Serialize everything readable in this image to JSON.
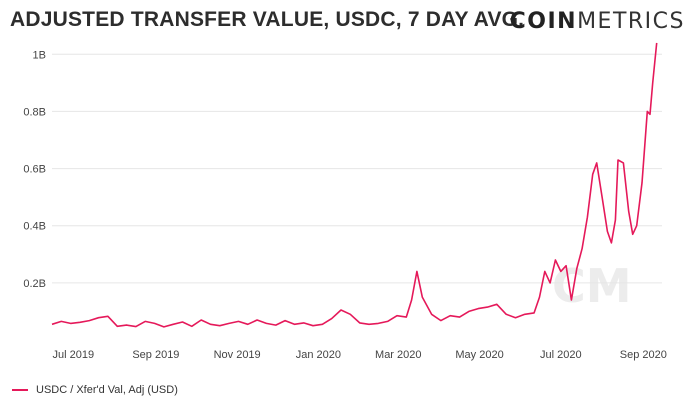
{
  "header": {
    "title": "ADJUSTED TRANSFER VALUE, USDC, 7 DAY AVG.",
    "logo_bold": "COIN",
    "logo_light": "METRICS"
  },
  "colors": {
    "series": "#e5195a",
    "grid": "#e6e6e6",
    "watermark": "#ececec"
  },
  "chart_data": {
    "type": "line",
    "title": "ADJUSTED TRANSFER VALUE, USDC, 7 DAY AVG.",
    "xlabel": "",
    "ylabel": "",
    "y_unit": "USD",
    "ylim": [
      0,
      1050000000
    ],
    "xlim": [
      "2019-06-15",
      "2020-09-15"
    ],
    "grid": true,
    "legend_position": "bottom-left",
    "y_ticks": [
      {
        "value": 200000000,
        "label": "0.2B"
      },
      {
        "value": 400000000,
        "label": "0.4B"
      },
      {
        "value": 600000000,
        "label": "0.6B"
      },
      {
        "value": 800000000,
        "label": "0.8B"
      },
      {
        "value": 1000000000,
        "label": "1B"
      }
    ],
    "x_ticks": [
      {
        "date": "2019-07-01",
        "label": "Jul 2019"
      },
      {
        "date": "2019-09-01",
        "label": "Sep 2019"
      },
      {
        "date": "2019-11-01",
        "label": "Nov 2019"
      },
      {
        "date": "2020-01-01",
        "label": "Jan 2020"
      },
      {
        "date": "2020-03-01",
        "label": "Mar 2020"
      },
      {
        "date": "2020-05-01",
        "label": "May 2020"
      },
      {
        "date": "2020-07-01",
        "label": "Jul 2020"
      },
      {
        "date": "2020-09-01",
        "label": "Sep 2020"
      }
    ],
    "series": [
      {
        "name": "USDC / Xfer'd Val, Adj (USD)",
        "color": "#e5195a",
        "points": [
          [
            "2019-06-15",
            55000000
          ],
          [
            "2019-06-22",
            65000000
          ],
          [
            "2019-06-29",
            58000000
          ],
          [
            "2019-07-06",
            62000000
          ],
          [
            "2019-07-13",
            68000000
          ],
          [
            "2019-07-20",
            78000000
          ],
          [
            "2019-07-27",
            83000000
          ],
          [
            "2019-08-03",
            48000000
          ],
          [
            "2019-08-10",
            52000000
          ],
          [
            "2019-08-17",
            47000000
          ],
          [
            "2019-08-24",
            65000000
          ],
          [
            "2019-08-31",
            58000000
          ],
          [
            "2019-09-07",
            46000000
          ],
          [
            "2019-09-14",
            55000000
          ],
          [
            "2019-09-21",
            63000000
          ],
          [
            "2019-09-28",
            48000000
          ],
          [
            "2019-10-05",
            70000000
          ],
          [
            "2019-10-12",
            55000000
          ],
          [
            "2019-10-19",
            50000000
          ],
          [
            "2019-10-26",
            58000000
          ],
          [
            "2019-11-02",
            65000000
          ],
          [
            "2019-11-09",
            55000000
          ],
          [
            "2019-11-16",
            70000000
          ],
          [
            "2019-11-23",
            58000000
          ],
          [
            "2019-11-30",
            52000000
          ],
          [
            "2019-12-07",
            68000000
          ],
          [
            "2019-12-14",
            55000000
          ],
          [
            "2019-12-21",
            60000000
          ],
          [
            "2019-12-28",
            50000000
          ],
          [
            "2020-01-04",
            55000000
          ],
          [
            "2020-01-11",
            75000000
          ],
          [
            "2020-01-18",
            105000000
          ],
          [
            "2020-01-25",
            90000000
          ],
          [
            "2020-02-01",
            60000000
          ],
          [
            "2020-02-08",
            55000000
          ],
          [
            "2020-02-15",
            58000000
          ],
          [
            "2020-02-22",
            65000000
          ],
          [
            "2020-02-29",
            85000000
          ],
          [
            "2020-03-07",
            80000000
          ],
          [
            "2020-03-11",
            140000000
          ],
          [
            "2020-03-15",
            240000000
          ],
          [
            "2020-03-19",
            150000000
          ],
          [
            "2020-03-26",
            90000000
          ],
          [
            "2020-04-02",
            68000000
          ],
          [
            "2020-04-09",
            85000000
          ],
          [
            "2020-04-16",
            80000000
          ],
          [
            "2020-04-23",
            100000000
          ],
          [
            "2020-04-30",
            110000000
          ],
          [
            "2020-05-07",
            115000000
          ],
          [
            "2020-05-14",
            125000000
          ],
          [
            "2020-05-21",
            90000000
          ],
          [
            "2020-05-28",
            78000000
          ],
          [
            "2020-06-04",
            90000000
          ],
          [
            "2020-06-11",
            95000000
          ],
          [
            "2020-06-15",
            150000000
          ],
          [
            "2020-06-19",
            240000000
          ],
          [
            "2020-06-23",
            200000000
          ],
          [
            "2020-06-27",
            280000000
          ],
          [
            "2020-07-01",
            240000000
          ],
          [
            "2020-07-05",
            260000000
          ],
          [
            "2020-07-09",
            140000000
          ],
          [
            "2020-07-13",
            250000000
          ],
          [
            "2020-07-17",
            320000000
          ],
          [
            "2020-07-21",
            430000000
          ],
          [
            "2020-07-25",
            580000000
          ],
          [
            "2020-07-28",
            620000000
          ],
          [
            "2020-08-01",
            500000000
          ],
          [
            "2020-08-05",
            380000000
          ],
          [
            "2020-08-08",
            340000000
          ],
          [
            "2020-08-11",
            420000000
          ],
          [
            "2020-08-13",
            630000000
          ],
          [
            "2020-08-17",
            620000000
          ],
          [
            "2020-08-21",
            450000000
          ],
          [
            "2020-08-24",
            370000000
          ],
          [
            "2020-08-27",
            400000000
          ],
          [
            "2020-08-31",
            550000000
          ],
          [
            "2020-09-04",
            800000000
          ],
          [
            "2020-09-06",
            790000000
          ],
          [
            "2020-09-08",
            900000000
          ],
          [
            "2020-09-11",
            1040000000
          ]
        ]
      }
    ]
  }
}
